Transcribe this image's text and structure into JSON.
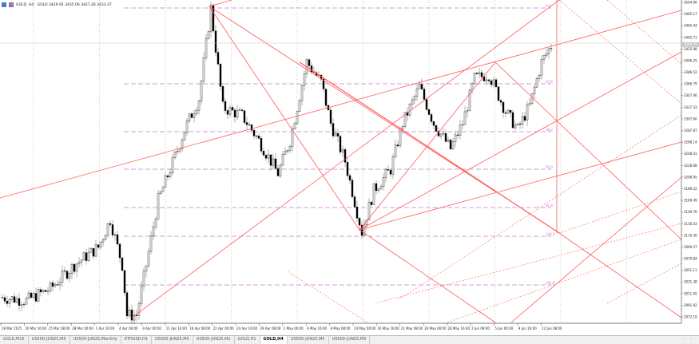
{
  "header": {
    "symbol": "GOLD, H4:",
    "ohlc": "GOLD 3429.95 3435.06 3427.26 3433.37"
  },
  "chart_data": {
    "type": "candlestick",
    "price_ticks": [
      "3504.90",
      "3485.17",
      "3465.44",
      "3445.71",
      "3425.98",
      "3406.25",
      "3386.52",
      "3366.79",
      "3347.06",
      "3327.33",
      "3307.60",
      "3287.87",
      "3268.14",
      "3248.41",
      "3228.68",
      "3208.95",
      "3189.22",
      "3169.49",
      "3149.76",
      "3130.03",
      "3110.30",
      "3090.57",
      "3070.84",
      "3051.11",
      "3031.38",
      "3011.65",
      "2991.92",
      "2972.19"
    ],
    "ylim": [
      2972.19,
      3504.9
    ],
    "current_price": "3433.37",
    "date_ticks": [
      "18 Mar 2025",
      "20 Mar 16:00",
      "25 Mar 08:00",
      "28 Mar 00:00",
      "1 Apr 16:00",
      "4 Apr 08:00",
      "9 Apr 00:00",
      "11 Apr 16:00",
      "16 Apr 08:00",
      "22 Apr 00:00",
      "24 Apr 16:00",
      "29 Apr 08:00",
      "2 May 00:00",
      "6 May 16:00",
      "9 May 08:00",
      "14 May 00:00",
      "16 May 16:00",
      "21 May 08:00",
      "26 May 00:00",
      "28 May 16:00",
      "2 Jun 08:00",
      "5 Jun 00:00",
      "9 Jun 16:00",
      "12 Jun 08:00"
    ],
    "price_path": [
      [
        0,
        3005
      ],
      [
        10,
        3000
      ],
      [
        20,
        3020
      ],
      [
        30,
        3060
      ],
      [
        40,
        3090
      ],
      [
        45,
        3137
      ],
      [
        50,
        3060
      ],
      [
        52,
        2975
      ],
      [
        56,
        2975
      ],
      [
        60,
        3060
      ],
      [
        65,
        3170
      ],
      [
        70,
        3222
      ],
      [
        77,
        3299
      ],
      [
        82,
        3341
      ],
      [
        87,
        3495
      ],
      [
        92,
        3327
      ],
      [
        100,
        3313
      ],
      [
        107,
        3271
      ],
      [
        115,
        3215
      ],
      [
        120,
        3271
      ],
      [
        127,
        3404
      ],
      [
        133,
        3370
      ],
      [
        137,
        3300
      ],
      [
        143,
        3236
      ],
      [
        150,
        3116
      ],
      [
        155,
        3187
      ],
      [
        162,
        3222
      ],
      [
        167,
        3300
      ],
      [
        174,
        3362
      ],
      [
        180,
        3300
      ],
      [
        187,
        3257
      ],
      [
        192,
        3300
      ],
      [
        197,
        3376
      ],
      [
        203,
        3383
      ],
      [
        210,
        3320
      ],
      [
        215,
        3290
      ],
      [
        220,
        3330
      ],
      [
        225,
        3404
      ],
      [
        229,
        3432
      ]
    ],
    "fib_levels": [
      "0.0",
      "23.6",
      "38.2",
      "50.0",
      "61.8",
      "100.0",
      "161.8"
    ],
    "colors": {
      "trendline": "#ff5a5a",
      "fib": "#c77bd0",
      "candle": "#000000",
      "wick": "#888888"
    }
  },
  "tabs": [
    "GOLD,M15",
    "US500-JUN25,M5",
    "US500-JUN25,Monthly",
    "ETHUSD,H1",
    "US500-JUN25,M5",
    "US500-JUN25,M1",
    "GOLD,H1",
    "GOLD,H4",
    "US500-JUN25,M5",
    "US500-JUN25,M5"
  ],
  "active_tab": "GOLD,H4",
  "tab_arrows": "‹ ›"
}
